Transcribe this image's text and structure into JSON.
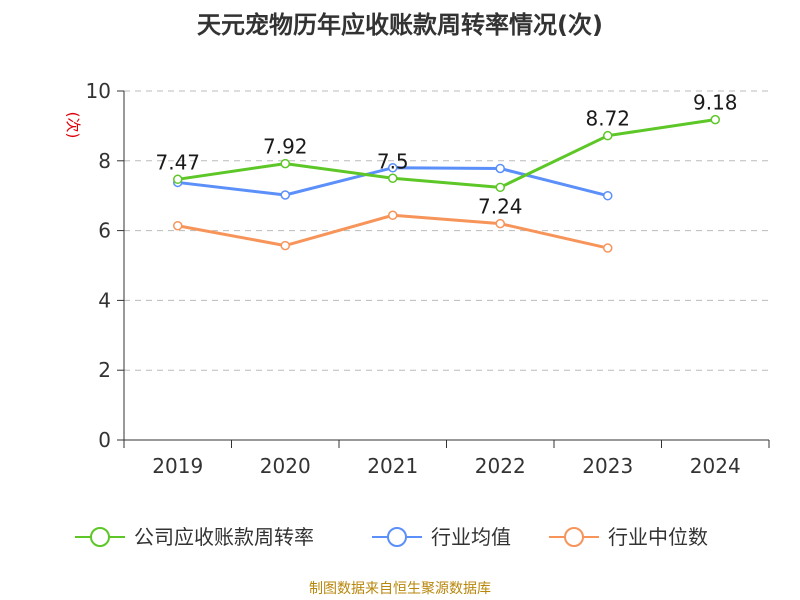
{
  "chart_data": {
    "type": "line",
    "title": "天元宠物历年应收账款周转率情况(次)",
    "ylabel": "(次)",
    "categories": [
      "2019",
      "2020",
      "2021",
      "2022",
      "2023",
      "2024"
    ],
    "ylim": [
      0,
      10
    ],
    "yticks": [
      "0",
      "2",
      "4",
      "6",
      "8",
      "10"
    ],
    "grid": true,
    "legend_position": "bottom",
    "series": [
      {
        "name": "公司应收账款周转率",
        "color": "#5cc726",
        "values": [
          7.47,
          7.92,
          7.5,
          7.24,
          8.72,
          9.18
        ],
        "labels": [
          "7.47",
          "7.92",
          "7.5",
          "7.24",
          "8.72",
          "9.18"
        ]
      },
      {
        "name": "行业均值",
        "color": "#5b8ff9",
        "values": [
          7.38,
          7.02,
          7.8,
          7.78,
          7.0,
          null
        ]
      },
      {
        "name": "行业中位数",
        "color": "#f7945a",
        "values": [
          6.14,
          5.57,
          6.44,
          6.2,
          5.5,
          null
        ]
      }
    ],
    "source": "制图数据来自恒生聚源数据库"
  }
}
